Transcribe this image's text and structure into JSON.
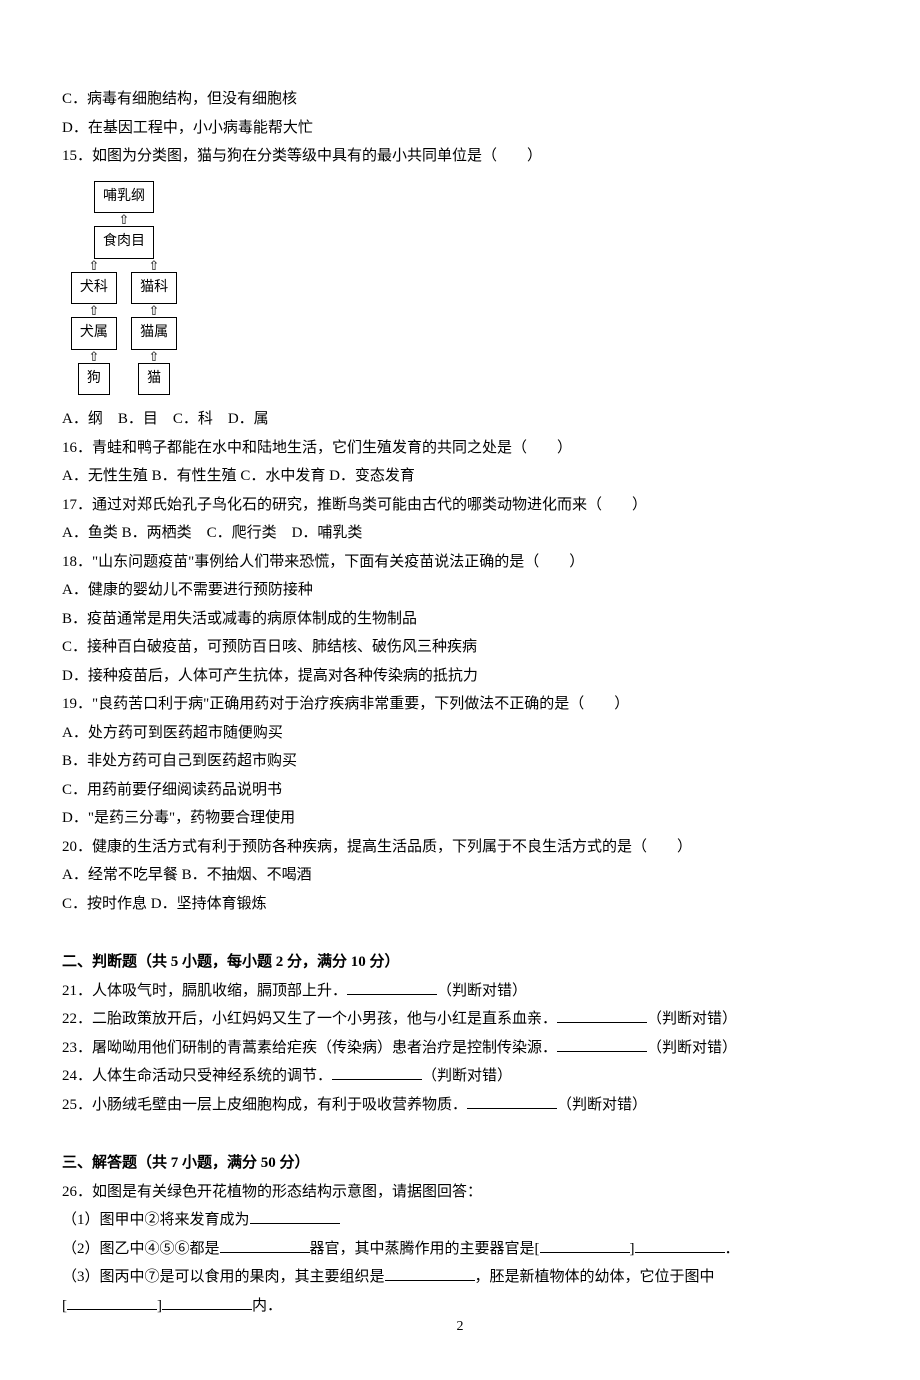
{
  "q14": {
    "opt_c": "C．病毒有细胞结构，但没有细胞核",
    "opt_d": "D．在基因工程中，小小病毒能帮大忙"
  },
  "q15": {
    "stem": "15．如图为分类图，猫与狗在分类等级中具有的最小共同单位是（　　）",
    "tree": {
      "l1": "哺乳纲",
      "l2": "食肉目",
      "l3a": "犬科",
      "l3b": "猫科",
      "l4a": "犬属",
      "l4b": "猫属",
      "l5a": "狗",
      "l5b": "猫"
    },
    "opts": "A．纲　B．目　C．科　D．属"
  },
  "q16": {
    "stem": "16．青蛙和鸭子都能在水中和陆地生活，它们生殖发育的共同之处是（　　）",
    "opts": "A．无性生殖 B．有性生殖 C．水中发育 D．变态发育"
  },
  "q17": {
    "stem": "17．通过对郑氏始孔子鸟化石的研究，推断鸟类可能由古代的哪类动物进化而来（　　）",
    "opts": "A．鱼类 B．两栖类　C．爬行类　D．哺乳类"
  },
  "q18": {
    "stem": "18．\"山东问题疫苗\"事例给人们带来恐慌，下面有关疫苗说法正确的是（　　）",
    "opt_a": "A．健康的婴幼儿不需要进行预防接种",
    "opt_b": "B．疫苗通常是用失活或减毒的病原体制成的生物制品",
    "opt_c": "C．接种百白破疫苗，可预防百日咳、肺结核、破伤风三种疾病",
    "opt_d": "D．接种疫苗后，人体可产生抗体，提高对各种传染病的抵抗力"
  },
  "q19": {
    "stem": "19．\"良药苦口利于病\"正确用药对于治疗疾病非常重要，下列做法不正确的是（　　）",
    "opt_a": "A．处方药可到医药超市随便购买",
    "opt_b": "B．非处方药可自己到医药超市购买",
    "opt_c": "C．用药前要仔细阅读药品说明书",
    "opt_d": "D．\"是药三分毒\"，药物要合理使用"
  },
  "q20": {
    "stem": "20．健康的生活方式有利于预防各种疾病，提高生活品质，下列属于不良生活方式的是（　　）",
    "opts_line1": "A．经常不吃早餐 B．不抽烟、不喝酒",
    "opts_line2": "C．按时作息 D．坚持体育锻炼"
  },
  "section2": {
    "heading": "二、判断题（共 5 小题，每小题 2 分，满分 10 分）",
    "q21": {
      "text": "21．人体吸气时，膈肌收缩，膈顶部上升．",
      "suffix": "（判断对错）"
    },
    "q22": {
      "text": "22．二胎政策放开后，小红妈妈又生了一个小男孩，他与小红是直系血亲．",
      "suffix": "（判断对错）"
    },
    "q23": {
      "text": "23．屠呦呦用他们研制的青蒿素给疟疾（传染病）患者治疗是控制传染源．",
      "suffix": "（判断对错）"
    },
    "q24": {
      "text": "24．人体生命活动只受神经系统的调节．",
      "suffix": "（判断对错）"
    },
    "q25": {
      "text": "25．小肠绒毛壁由一层上皮细胞构成，有利于吸收营养物质．",
      "suffix": "（判断对错）"
    }
  },
  "section3": {
    "heading": "三、解答题（共 7 小题，满分 50 分）",
    "q26": {
      "stem": "26．如图是有关绿色开花植物的形态结构示意图，请据图回答：",
      "p1_a": "（1）图甲中②将来发育成为",
      "p2_a": "（2）图乙中④⑤⑥都是",
      "p2_b": "器官，其中蒸腾作用的主要器官是[",
      "p2_c": "]",
      "p2_d": "．",
      "p3_a": "（3）图丙中⑦是可以食用的果肉，其主要组织是",
      "p3_b": "，胚是新植物体的幼体，它位于图中",
      "p3_c": "[",
      "p3_d": "]",
      "p3_e": "内．"
    }
  },
  "page_number": "2"
}
